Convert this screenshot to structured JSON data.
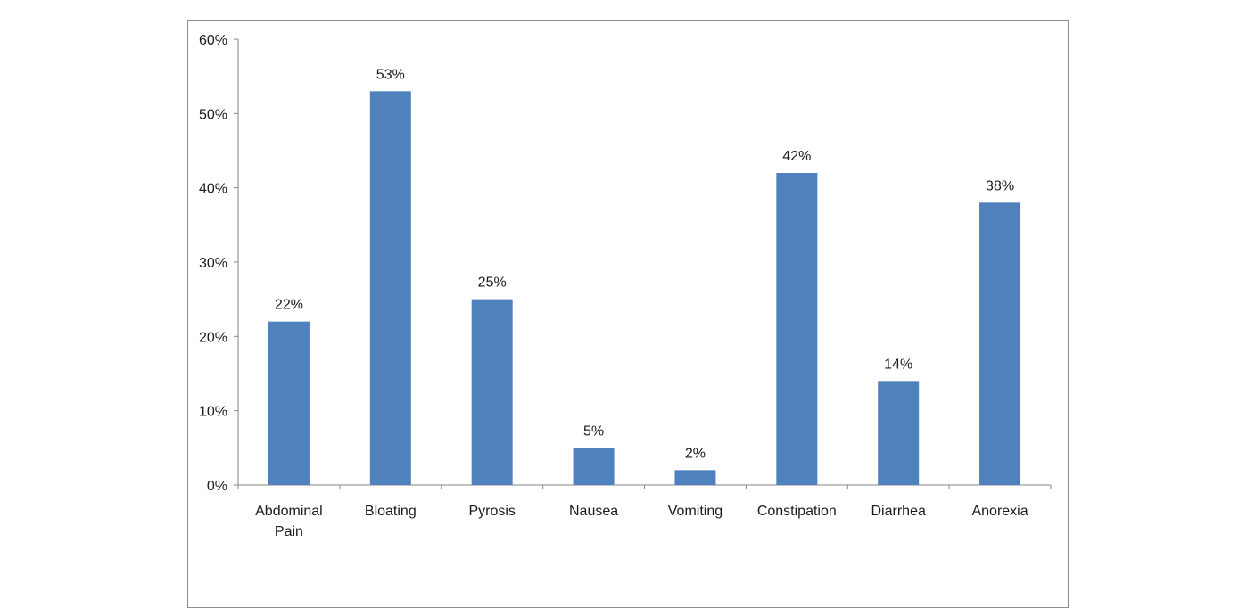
{
  "chart_data": {
    "type": "bar",
    "categories": [
      "Abdominal Pain",
      "Bloating",
      "Pyrosis",
      "Nausea",
      "Vomiting",
      "Constipation",
      "Diarrhea",
      "Anorexia"
    ],
    "category_lines": [
      [
        "Abdominal",
        "Pain"
      ],
      [
        "Bloating"
      ],
      [
        "Pyrosis"
      ],
      [
        "Nausea"
      ],
      [
        "Vomiting"
      ],
      [
        "Constipation"
      ],
      [
        "Diarrhea"
      ],
      [
        "Anorexia"
      ]
    ],
    "values": [
      22,
      53,
      25,
      5,
      2,
      42,
      14,
      38
    ],
    "data_labels": [
      "22%",
      "53%",
      "25%",
      "5%",
      "2%",
      "42%",
      "14%",
      "38%"
    ],
    "ylim": [
      0,
      60
    ],
    "yticks": [
      0,
      10,
      20,
      30,
      40,
      50,
      60
    ],
    "ytick_labels": [
      "0%",
      "10%",
      "20%",
      "30%",
      "40%",
      "50%",
      "60%"
    ],
    "title": "",
    "xlabel": "",
    "ylabel": "",
    "grid": false,
    "legend": "none",
    "bar_color": "#4f81bd",
    "axis_color": "#868686"
  }
}
